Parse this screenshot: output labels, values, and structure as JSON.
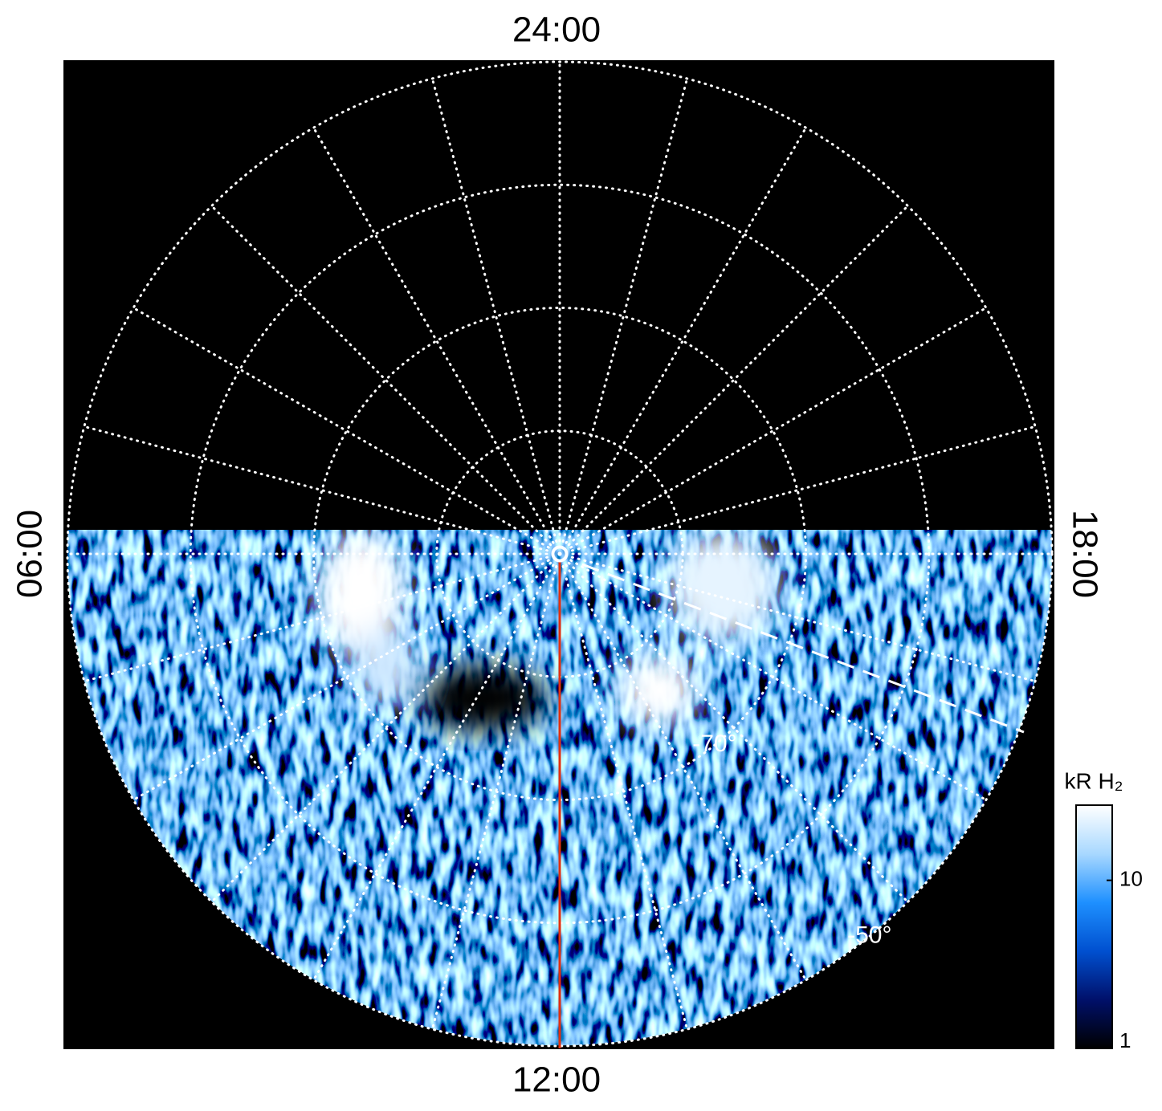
{
  "chart_data": {
    "type": "polar_map",
    "lt_labels": {
      "top": "24:00",
      "left": "06:00",
      "right": "18:00",
      "bottom": "12:00"
    },
    "lat_lim": [
      -90,
      -50
    ],
    "lat_circles": [
      -80,
      -70,
      -60,
      -50
    ],
    "lt_grid_hours": 1,
    "lat_labels": [
      {
        "value": -70,
        "label": "-70°"
      },
      {
        "value": -50,
        "label": "-50°"
      }
    ],
    "colorbar_label": "kR H₂",
    "clim": [
      1,
      28
    ],
    "log_scale": true,
    "colorbar_ticks": [
      1,
      10
    ],
    "colormap": [
      "#000000",
      "#00106a",
      "#0050d0",
      "#1e90ff",
      "#a8d8ff",
      "#ffffff"
    ]
  }
}
